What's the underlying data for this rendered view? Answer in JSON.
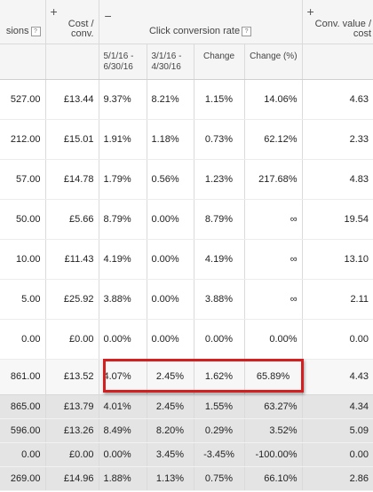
{
  "header": {
    "col_conversions": "sions",
    "col_cost_conv": "Cost / conv.",
    "col_ccr": "Click conversion rate",
    "col_value_cost": "Conv. value / cost",
    "plus_glyph": "+",
    "minus_glyph": "−",
    "help_glyph": "?",
    "sub_date1": "5/1/16 - 6/30/16",
    "sub_date2": "3/1/16 - 4/30/16",
    "sub_change": "Change",
    "sub_change_pct": "Change (%)"
  },
  "rows": [
    {
      "conv": "527.00",
      "cost": "£13.44",
      "d1": "9.37%",
      "d2": "8.21%",
      "chg": "1.15%",
      "pct": "14.06%",
      "val": "4.63"
    },
    {
      "conv": "212.00",
      "cost": "£15.01",
      "d1": "1.91%",
      "d2": "1.18%",
      "chg": "0.73%",
      "pct": "62.12%",
      "val": "2.33"
    },
    {
      "conv": "57.00",
      "cost": "£14.78",
      "d1": "1.79%",
      "d2": "0.56%",
      "chg": "1.23%",
      "pct": "217.68%",
      "val": "4.83"
    },
    {
      "conv": "50.00",
      "cost": "£5.66",
      "d1": "8.79%",
      "d2": "0.00%",
      "chg": "8.79%",
      "pct": "∞",
      "val": "19.54"
    },
    {
      "conv": "10.00",
      "cost": "£11.43",
      "d1": "4.19%",
      "d2": "0.00%",
      "chg": "4.19%",
      "pct": "∞",
      "val": "13.10"
    },
    {
      "conv": "5.00",
      "cost": "£25.92",
      "d1": "3.88%",
      "d2": "0.00%",
      "chg": "3.88%",
      "pct": "∞",
      "val": "2.11"
    },
    {
      "conv": "0.00",
      "cost": "£0.00",
      "d1": "0.00%",
      "d2": "0.00%",
      "chg": "0.00%",
      "pct": "0.00%",
      "val": "0.00"
    }
  ],
  "total": {
    "conv": "861.00",
    "cost": "£13.52",
    "d1": "4.07%",
    "d2": "2.45%",
    "chg": "1.62%",
    "pct": "65.89%",
    "val": "4.43"
  },
  "summary": [
    {
      "conv": "865.00",
      "cost": "£13.79",
      "d1": "4.01%",
      "d2": "2.45%",
      "chg": "1.55%",
      "pct": "63.27%",
      "val": "4.34"
    },
    {
      "conv": "596.00",
      "cost": "£13.26",
      "d1": "8.49%",
      "d2": "8.20%",
      "chg": "0.29%",
      "pct": "3.52%",
      "val": "5.09"
    },
    {
      "conv": "0.00",
      "cost": "£0.00",
      "d1": "0.00%",
      "d2": "3.45%",
      "chg": "-3.45%",
      "pct": "-100.00%",
      "val": "0.00"
    },
    {
      "conv": "269.00",
      "cost": "£14.96",
      "d1": "1.88%",
      "d2": "1.13%",
      "chg": "0.75%",
      "pct": "66.10%",
      "val": "2.86"
    }
  ]
}
